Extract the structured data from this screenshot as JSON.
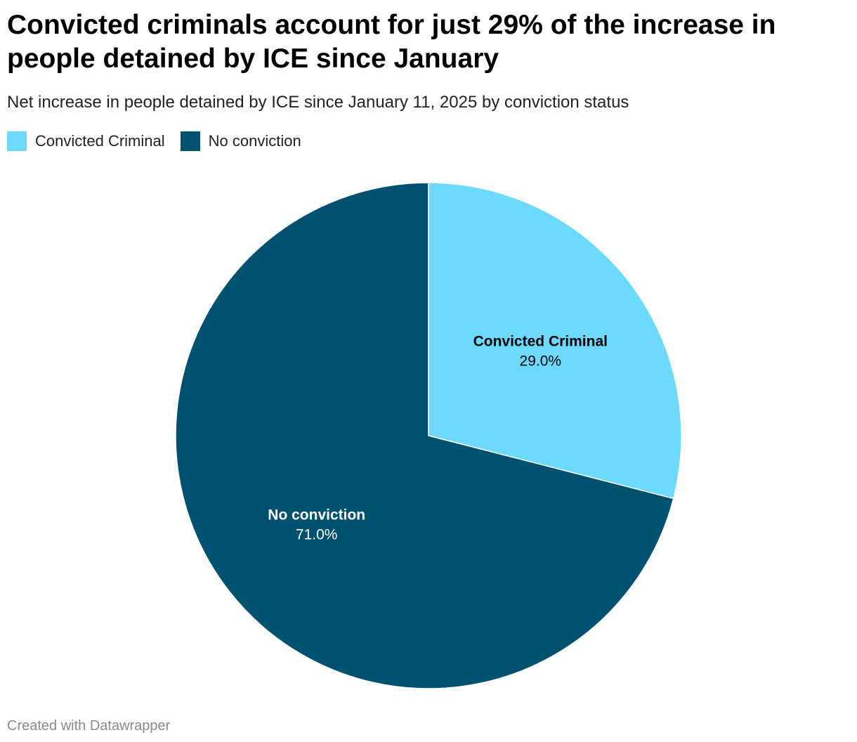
{
  "chart_data": {
    "type": "pie",
    "title": "Convicted criminals account for just 29% of the increase in people detained by ICE since January",
    "subtitle": "Net increase in people detained by ICE since January 11, 2025 by conviction status",
    "legend_position": "top-left",
    "slices": [
      {
        "label": "Convicted Criminal",
        "value": 29.0,
        "display": "29.0%",
        "color": "#6dd9fc",
        "label_color": "#000000"
      },
      {
        "label": "No conviction",
        "value": 71.0,
        "display": "71.0%",
        "color": "#005170",
        "label_color": "#ffffff"
      }
    ]
  },
  "footer": "Created with Datawrapper"
}
